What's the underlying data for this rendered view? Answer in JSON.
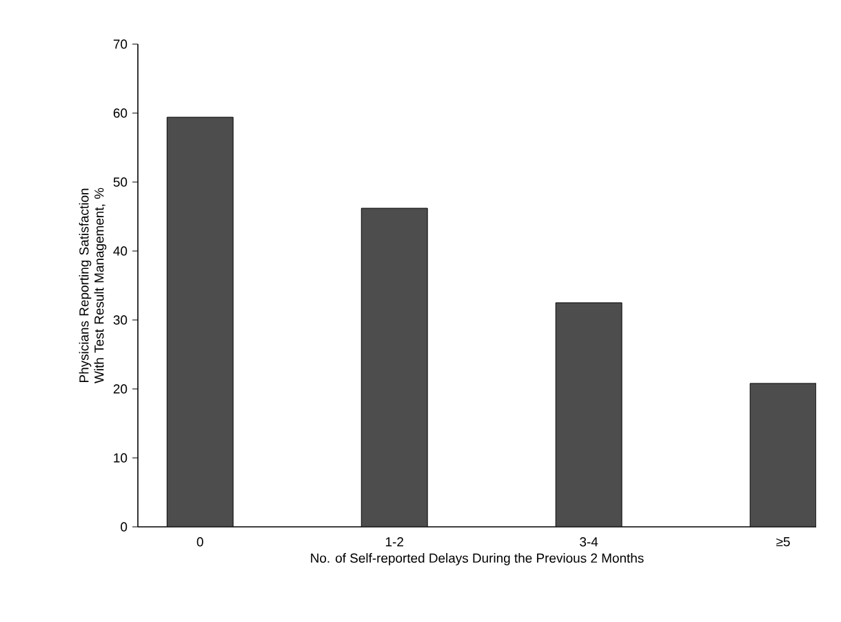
{
  "chart_data": {
    "type": "bar",
    "categories": [
      "0",
      "1-2",
      "3-4",
      "≥5"
    ],
    "values": [
      59.4,
      46.2,
      32.5,
      20.8
    ],
    "color": "#4d4d4d",
    "xlabel": "No. of Self-reported Delays During the Previous 2 Months",
    "ylabel": "Physicians Reporting Satisfaction With Test Result Management, %",
    "ylim": [
      0,
      70
    ],
    "yticks": [
      0,
      10,
      20,
      30,
      40,
      50,
      60,
      70
    ],
    "grid": false
  }
}
